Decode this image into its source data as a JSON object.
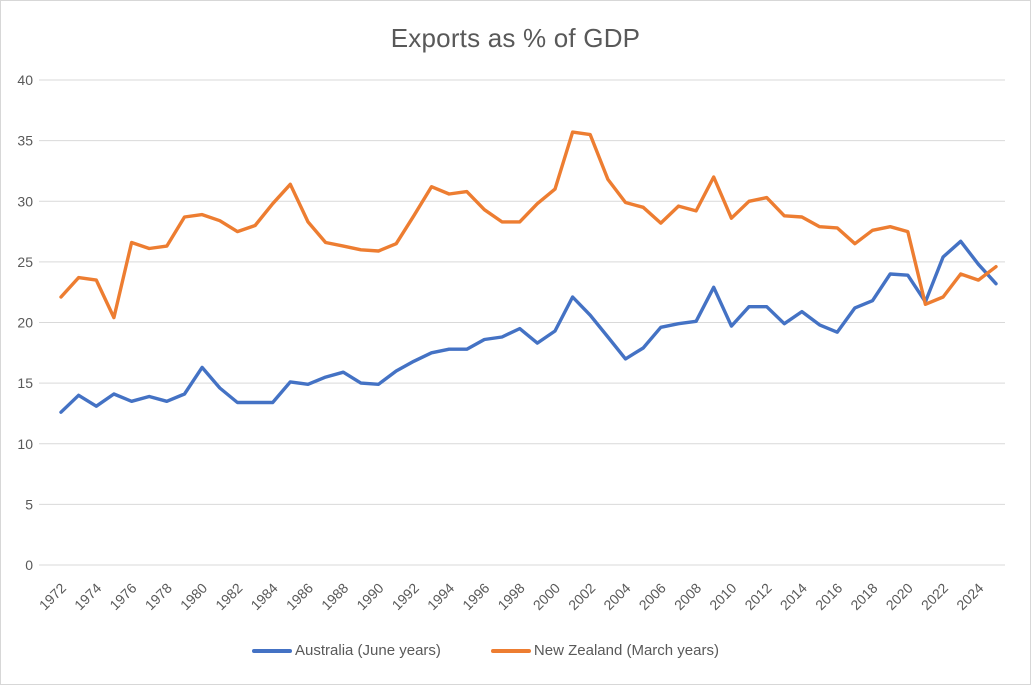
{
  "chart_data": {
    "type": "line",
    "title": "Exports as % of GDP",
    "x": [
      1972,
      1973,
      1974,
      1975,
      1976,
      1977,
      1978,
      1979,
      1980,
      1981,
      1982,
      1983,
      1984,
      1985,
      1986,
      1987,
      1988,
      1989,
      1990,
      1991,
      1992,
      1993,
      1994,
      1995,
      1996,
      1997,
      1998,
      1999,
      2000,
      2001,
      2002,
      2003,
      2004,
      2005,
      2006,
      2007,
      2008,
      2009,
      2010,
      2011,
      2012,
      2013,
      2014,
      2015,
      2016,
      2017,
      2018,
      2019,
      2020,
      2021,
      2022,
      2023,
      2024,
      2025
    ],
    "series": [
      {
        "name": "Australia (June years)",
        "color": "#4472C4",
        "values": [
          12.6,
          14.0,
          13.1,
          14.1,
          13.5,
          13.9,
          13.5,
          14.1,
          16.3,
          14.6,
          13.4,
          13.4,
          13.4,
          15.1,
          14.9,
          15.5,
          15.9,
          15.0,
          14.9,
          16.0,
          16.8,
          17.5,
          17.8,
          17.8,
          18.6,
          18.8,
          19.5,
          18.3,
          19.3,
          22.1,
          20.6,
          18.8,
          17.0,
          17.9,
          19.6,
          19.9,
          20.1,
          22.9,
          19.7,
          21.3,
          21.3,
          19.9,
          20.9,
          19.8,
          19.2,
          21.2,
          21.8,
          24.0,
          23.9,
          21.7,
          25.4,
          26.7,
          24.8,
          23.2
        ]
      },
      {
        "name": "New Zealand (March years)",
        "color": "#ED7D31",
        "values": [
          22.1,
          23.7,
          23.5,
          20.4,
          26.6,
          26.1,
          26.3,
          28.7,
          28.9,
          28.4,
          27.5,
          28.0,
          29.8,
          31.4,
          28.3,
          26.6,
          26.3,
          26.0,
          25.9,
          26.5,
          28.8,
          31.2,
          30.6,
          30.8,
          29.3,
          28.3,
          28.3,
          29.8,
          31.0,
          35.7,
          35.5,
          31.8,
          29.9,
          29.5,
          28.2,
          29.6,
          29.2,
          32.0,
          28.6,
          30.0,
          30.3,
          28.8,
          28.7,
          27.9,
          27.8,
          26.5,
          27.6,
          27.9,
          27.5,
          21.5,
          22.1,
          24.0,
          23.5,
          24.6
        ]
      }
    ],
    "xticks": [
      1972,
      1974,
      1976,
      1978,
      1980,
      1982,
      1984,
      1986,
      1988,
      1990,
      1992,
      1994,
      1996,
      1998,
      2000,
      2002,
      2004,
      2006,
      2008,
      2010,
      2012,
      2014,
      2016,
      2018,
      2020,
      2022,
      2024
    ],
    "yticks": [
      0,
      5,
      10,
      15,
      20,
      25,
      30,
      35,
      40
    ],
    "ylim": [
      0,
      40
    ],
    "gridlines": true,
    "legend_position": "bottom",
    "colors": {
      "text": "#595959",
      "grid": "#D9D9D9",
      "border": "#D7D7D7"
    }
  }
}
